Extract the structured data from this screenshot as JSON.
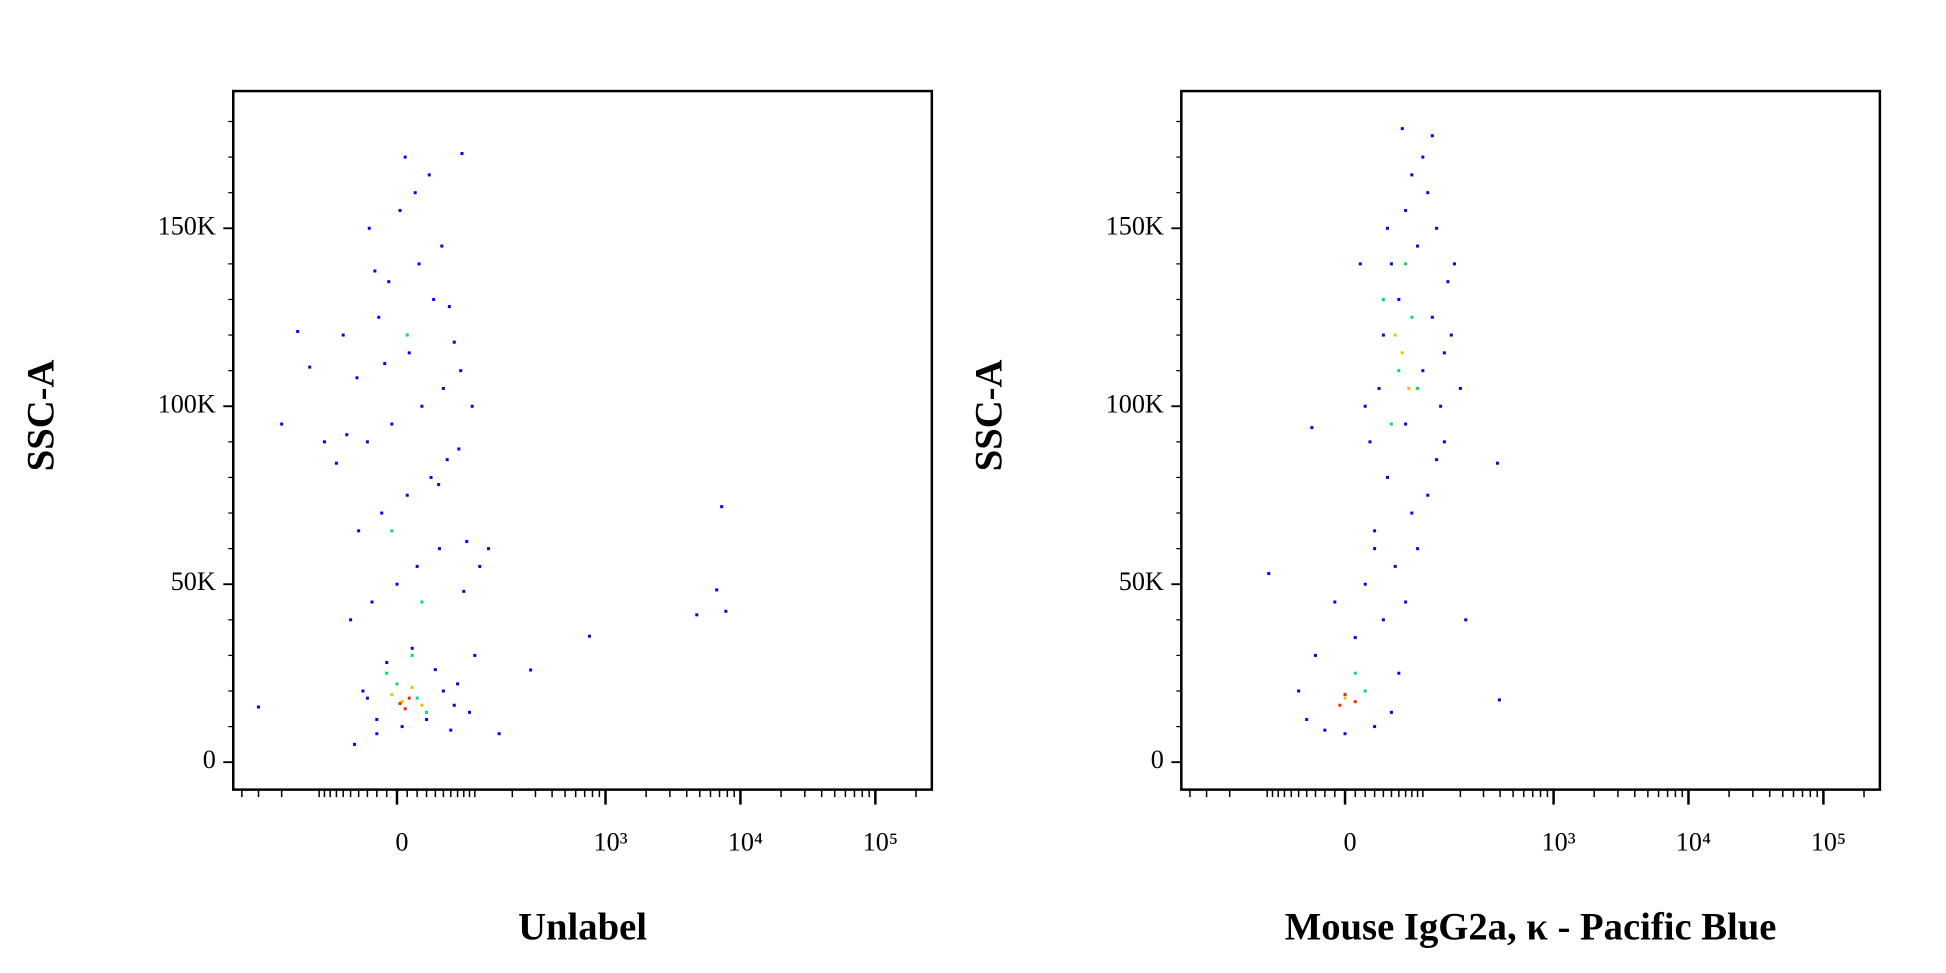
{
  "chart_data": [
    {
      "type": "scatter",
      "x_label": "Unlabel",
      "y_label": "SSC-A",
      "xscale": "biexponential",
      "xlim": [
        -464,
        262144
      ],
      "ylim": [
        -7710,
        188552
      ],
      "xticks": [
        0,
        {
          "value": 1000,
          "label": "10³"
        },
        {
          "value": 10000,
          "label": "10⁴"
        },
        {
          "value": 100000,
          "label": "10⁵"
        }
      ],
      "xminorticks": [
        -400,
        -300,
        -200,
        -100,
        -90,
        -80,
        -70,
        -60,
        -50,
        -40,
        -30,
        -20,
        -10,
        10,
        20,
        30,
        40,
        50,
        60,
        70,
        80,
        90,
        100,
        200,
        300,
        400,
        500,
        600,
        700,
        800,
        900,
        2000,
        3000,
        4000,
        5000,
        6000,
        7000,
        8000,
        9000,
        20000,
        30000,
        40000,
        50000,
        60000,
        70000,
        80000,
        90000,
        200000
      ],
      "yticks": [
        0,
        {
          "value": 50000,
          "label": "50K"
        },
        {
          "value": 100000,
          "label": "100K"
        },
        {
          "value": 150000,
          "label": "150K"
        }
      ],
      "yminorticks": [
        10000,
        20000,
        30000,
        40000,
        60000,
        70000,
        80000,
        90000,
        110000,
        120000,
        130000,
        140000,
        160000,
        170000,
        180000
      ],
      "series": [
        {
          "color": "#0000ff",
          "x": [
            -45,
            -20,
            5,
            30,
            60,
            90,
            -35,
            -10,
            15,
            40,
            70,
            100,
            -50,
            -25,
            0,
            20,
            45,
            80,
            -40,
            -15,
            10,
            35,
            55,
            85,
            -30,
            -5,
            25,
            50,
            75,
            -55,
            -60,
            12,
            -18,
            38,
            65,
            95,
            -8,
            22,
            48,
            -28,
            3,
            58,
            -42,
            18,
            33,
            -12,
            72,
            8,
            -22,
            44,
            -300,
            -150,
            -120,
            -90,
            -200,
            760,
            4750,
            6670,
            7260,
            7800,
            276,
            158,
            77,
            110,
            130,
            -70,
            -30,
            50,
            -20,
            65
          ],
          "y": [
            5000,
            8000,
            10000,
            12000,
            9000,
            14000,
            20000,
            28000,
            32000,
            26000,
            22000,
            30000,
            40000,
            45000,
            50000,
            55000,
            60000,
            48000,
            65000,
            70000,
            75000,
            80000,
            85000,
            62000,
            90000,
            95000,
            100000,
            105000,
            110000,
            92000,
            120000,
            115000,
            125000,
            130000,
            118000,
            100000,
            135000,
            140000,
            145000,
            150000,
            155000,
            128000,
            108000,
            160000,
            165000,
            112000,
            88000,
            170000,
            138000,
            78000,
            15500,
            121000,
            111000,
            90000,
            95000,
            35400,
            41400,
            48400,
            71800,
            42400,
            25900,
            8000,
            171000,
            55000,
            60000,
            84000,
            18000,
            20000,
            12000,
            16000
          ]
        },
        {
          "color": "#00e060",
          "x": [
            0,
            20,
            -10,
            30,
            10,
            -5,
            25,
            15
          ],
          "y": [
            22000,
            18000,
            25000,
            14000,
            120000,
            65000,
            45000,
            30000
          ]
        },
        {
          "color": "#f0c000",
          "x": [
            5,
            15,
            -5,
            25
          ],
          "y": [
            17000,
            21000,
            19000,
            16000
          ]
        },
        {
          "color": "#ff2000",
          "x": [
            8,
            12,
            3
          ],
          "y": [
            15000,
            18000,
            16500
          ]
        }
      ]
    },
    {
      "type": "scatter",
      "x_label": "Mouse IgG2a, κ - Pacific Blue",
      "y_label": "SSC-A",
      "xscale": "biexponential",
      "xlim": [
        -464,
        262144
      ],
      "ylim": [
        -7710,
        188552
      ],
      "xticks": [
        0,
        {
          "value": 1000,
          "label": "10³"
        },
        {
          "value": 10000,
          "label": "10⁴"
        },
        {
          "value": 100000,
          "label": "10⁵"
        }
      ],
      "xminorticks": [
        -400,
        -300,
        -200,
        -100,
        -90,
        -80,
        -70,
        -60,
        -50,
        -40,
        -30,
        -20,
        -10,
        10,
        20,
        30,
        40,
        50,
        60,
        70,
        80,
        90,
        100,
        200,
        300,
        400,
        500,
        600,
        700,
        800,
        900,
        2000,
        3000,
        4000,
        5000,
        6000,
        7000,
        8000,
        9000,
        20000,
        30000,
        40000,
        50000,
        60000,
        70000,
        80000,
        90000,
        200000
      ],
      "yticks": [
        0,
        {
          "value": 50000,
          "label": "50K"
        },
        {
          "value": 100000,
          "label": "100K"
        },
        {
          "value": 150000,
          "label": "150K"
        }
      ],
      "yminorticks": [
        10000,
        20000,
        30000,
        40000,
        60000,
        70000,
        80000,
        90000,
        110000,
        120000,
        130000,
        140000,
        160000,
        170000,
        180000
      ],
      "series": [
        {
          "color": "#0000ff",
          "x": [
            -40,
            -20,
            0,
            30,
            50,
            -50,
            60,
            -30,
            10,
            40,
            70,
            20,
            55,
            90,
            30,
            80,
            110,
            45,
            130,
            25,
            70,
            140,
            35,
            100,
            150,
            40,
            120,
            60,
            160,
            50,
            90,
            130,
            70,
            110,
            80,
            100,
            65,
            120,
            30,
            150,
            20,
            170,
            45,
            180,
            382,
            395,
            -97,
            -34,
            220,
            200,
            -10,
            15
          ],
          "y": [
            12000,
            9000,
            8000,
            10000,
            14000,
            20000,
            25000,
            30000,
            35000,
            40000,
            45000,
            50000,
            55000,
            60000,
            65000,
            70000,
            75000,
            80000,
            85000,
            90000,
            95000,
            100000,
            105000,
            110000,
            115000,
            120000,
            125000,
            130000,
            135000,
            140000,
            145000,
            150000,
            155000,
            160000,
            165000,
            170000,
            178000,
            176000,
            60000,
            90000,
            100000,
            120000,
            150000,
            140000,
            84000,
            17500,
            53000,
            94000,
            40000,
            105000,
            45000,
            140000
          ]
        },
        {
          "color": "#00e060",
          "x": [
            60,
            80,
            50,
            70,
            10,
            40,
            90,
            20
          ],
          "y": [
            110000,
            125000,
            95000,
            140000,
            25000,
            130000,
            105000,
            20000
          ]
        },
        {
          "color": "#f0c000",
          "x": [
            65,
            75,
            0,
            55
          ],
          "y": [
            115000,
            105000,
            18000,
            120000
          ]
        },
        {
          "color": "#ff2000",
          "x": [
            -5,
            10,
            0
          ],
          "y": [
            16000,
            17000,
            19000
          ]
        }
      ]
    }
  ]
}
